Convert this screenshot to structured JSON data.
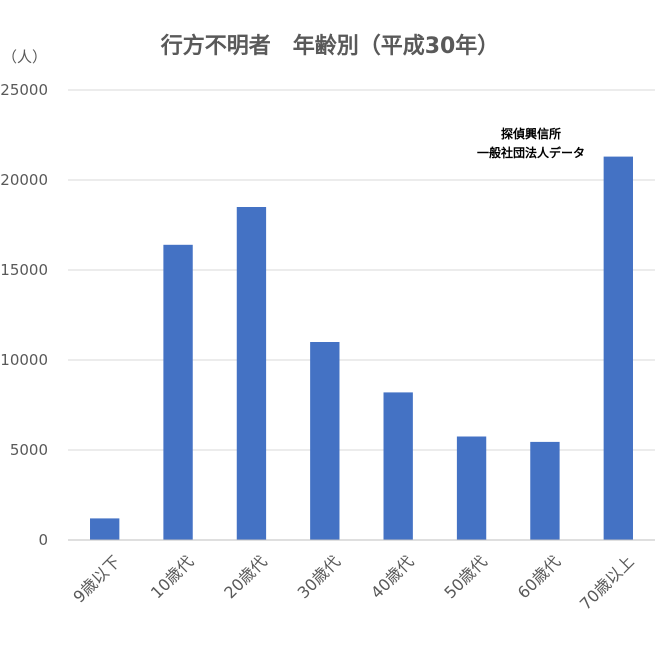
{
  "chart_data": {
    "type": "bar",
    "title": "行方不明者　年齢別（平成30年）",
    "unit_label": "（人）",
    "source_note": [
      "探偵興信所",
      "一般社団法人データ"
    ],
    "categories": [
      "9歳以下",
      "10歳代",
      "20歳代",
      "30歳代",
      "40歳代",
      "50歳代",
      "60歳代",
      "70歳以上"
    ],
    "values": [
      1200,
      16400,
      18500,
      11000,
      8200,
      5750,
      5450,
      21300
    ],
    "ylim": [
      0,
      25000
    ],
    "yticks": [
      0,
      5000,
      10000,
      15000,
      20000,
      25000
    ],
    "grid": true,
    "bar_color": "#4472c4",
    "xlabel": "",
    "ylabel": ""
  }
}
